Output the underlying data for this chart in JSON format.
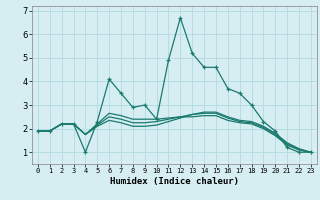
{
  "title": "",
  "xlabel": "Humidex (Indice chaleur)",
  "ylabel": "",
  "background_color": "#d6eef2",
  "grid_color": "#b8dce4",
  "line_color": "#1a7a6e",
  "x_values": [
    0,
    1,
    2,
    3,
    4,
    5,
    6,
    7,
    8,
    9,
    10,
    11,
    12,
    13,
    14,
    15,
    16,
    17,
    18,
    19,
    20,
    21,
    22,
    23
  ],
  "series1": [
    1.9,
    1.9,
    2.2,
    2.2,
    1.0,
    2.3,
    4.1,
    3.5,
    2.9,
    3.0,
    2.4,
    4.9,
    6.7,
    5.2,
    4.6,
    4.6,
    3.7,
    3.5,
    3.0,
    2.3,
    1.9,
    1.2,
    1.0,
    1.0
  ],
  "series2": [
    1.9,
    1.9,
    2.2,
    2.2,
    1.75,
    2.2,
    2.65,
    2.55,
    2.4,
    2.4,
    2.4,
    2.45,
    2.5,
    2.5,
    2.55,
    2.55,
    2.35,
    2.25,
    2.2,
    2.0,
    1.7,
    1.3,
    1.1,
    1.0
  ],
  "series3": [
    1.9,
    1.9,
    2.2,
    2.2,
    1.75,
    2.15,
    2.5,
    2.4,
    2.25,
    2.25,
    2.3,
    2.4,
    2.5,
    2.6,
    2.65,
    2.65,
    2.45,
    2.3,
    2.25,
    2.05,
    1.75,
    1.35,
    1.1,
    1.0
  ],
  "series4": [
    1.9,
    1.9,
    2.2,
    2.2,
    1.75,
    2.1,
    2.35,
    2.25,
    2.1,
    2.1,
    2.15,
    2.3,
    2.45,
    2.6,
    2.7,
    2.7,
    2.5,
    2.35,
    2.3,
    2.1,
    1.8,
    1.4,
    1.15,
    1.0
  ],
  "ylim": [
    0.5,
    7.2
  ],
  "xlim": [
    -0.5,
    23.5
  ],
  "yticks": [
    1,
    2,
    3,
    4,
    5,
    6,
    7
  ],
  "xtick_labels": [
    "0",
    "1",
    "2",
    "3",
    "4",
    "5",
    "6",
    "7",
    "8",
    "9",
    "10",
    "11",
    "12",
    "13",
    "14",
    "15",
    "16",
    "17",
    "18",
    "19",
    "20",
    "21",
    "22",
    "23"
  ]
}
